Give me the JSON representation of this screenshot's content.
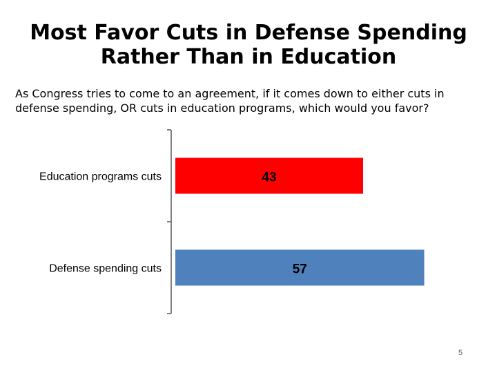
{
  "slide": {
    "title_line1": "Most Favor Cuts in Defense Spending",
    "title_line2": "Rather Than in Education",
    "question": "As Congress tries to come to an agreement, if it comes down to either cuts in defense spending, OR cuts in education programs, which would you favor?",
    "page_number": "5"
  },
  "chart_data": {
    "type": "bar",
    "orientation": "horizontal",
    "title": "Most Favor Cuts in Defense Spending Rather Than in Education",
    "subtitle": "As Congress tries to come to an agreement, if it comes down to either cuts in defense spending, OR cuts in education programs, which would you favor?",
    "categories": [
      "Education programs cuts",
      "Defense spending cuts"
    ],
    "values": [
      43,
      57
    ],
    "colors": [
      "#ff0000",
      "#4f81bd"
    ],
    "label_color": "#000000",
    "xlabel": "",
    "ylabel": "",
    "xlim": [
      0,
      60
    ],
    "grid": false,
    "legend": "none"
  }
}
